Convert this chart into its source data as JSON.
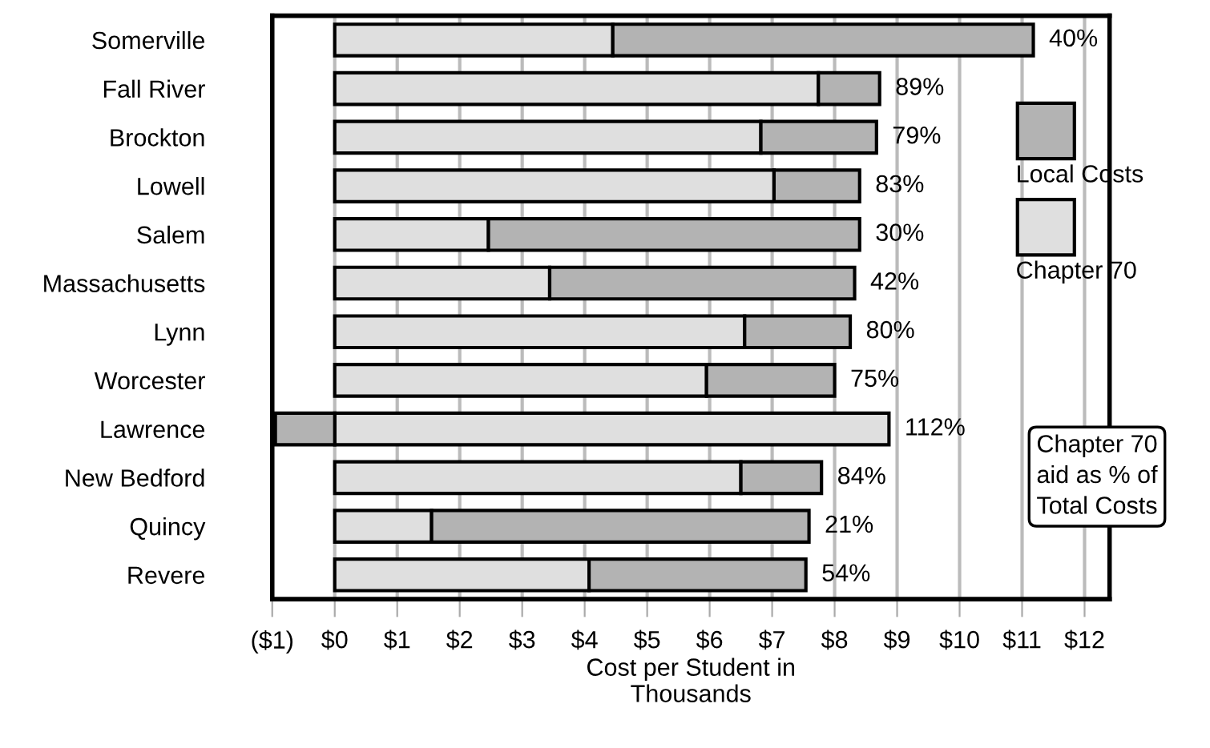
{
  "chart_data": {
    "type": "bar",
    "orientation": "horizontal",
    "stacked": true,
    "categories": [
      "Somerville",
      "Fall River",
      "Brockton",
      "Lowell",
      "Salem",
      "Massachusetts",
      "Lynn",
      "Worcester",
      "Lawrence",
      "New Bedford",
      "Quincy",
      "Revere"
    ],
    "series": [
      {
        "name": "Chapter 70",
        "color": "#dfdfdf",
        "values": [
          4.45,
          7.74,
          6.82,
          7.03,
          2.46,
          3.44,
          6.56,
          5.95,
          8.87,
          6.5,
          1.55,
          4.07
        ]
      },
      {
        "name": "Local Costs",
        "color": "#b3b3b3",
        "values": [
          6.73,
          0.98,
          1.85,
          1.37,
          5.94,
          4.88,
          1.69,
          2.05,
          -0.95,
          1.29,
          6.04,
          3.47
        ]
      }
    ],
    "xlabel": "Cost per Student in\nThousands",
    "xlim": [
      -1,
      12.4
    ],
    "xticks": [
      {
        "value": -1,
        "label": "($1)"
      },
      {
        "value": 0,
        "label": "$0"
      },
      {
        "value": 1,
        "label": "$1"
      },
      {
        "value": 2,
        "label": "$2"
      },
      {
        "value": 3,
        "label": "$3"
      },
      {
        "value": 4,
        "label": "$4"
      },
      {
        "value": 5,
        "label": "$5"
      },
      {
        "value": 6,
        "label": "$6"
      },
      {
        "value": 7,
        "label": "$7"
      },
      {
        "value": 8,
        "label": "$8"
      },
      {
        "value": 9,
        "label": "$9"
      },
      {
        "value": 10,
        "label": "$10"
      },
      {
        "value": 11,
        "label": "$11"
      },
      {
        "value": 12,
        "label": "$12"
      }
    ],
    "grid": "x",
    "legend": "right",
    "annotations": [
      {
        "text": "40%",
        "x": 11.18,
        "y": "Somerville"
      },
      {
        "text": "89%",
        "x": 8.72,
        "y": "Fall River"
      },
      {
        "text": "79%",
        "x": 8.67,
        "y": "Brockton"
      },
      {
        "text": "83%",
        "x": 8.4,
        "y": "Lowell"
      },
      {
        "text": "30%",
        "x": 8.4,
        "y": "Salem"
      },
      {
        "text": "42%",
        "x": 8.32,
        "y": "Massachusetts"
      },
      {
        "text": "80%",
        "x": 8.25,
        "y": "Lynn"
      },
      {
        "text": "75%",
        "x": 8.0,
        "y": "Worcester"
      },
      {
        "text": "112%",
        "x": 8.87,
        "y": "Lawrence"
      },
      {
        "text": "84%",
        "x": 7.79,
        "y": "New Bedford"
      },
      {
        "text": "21%",
        "x": 7.59,
        "y": "Quincy"
      },
      {
        "text": "54%",
        "x": 7.54,
        "y": "Revere"
      },
      "Chapter 70\naid as % of\nTotal Costs"
    ]
  }
}
